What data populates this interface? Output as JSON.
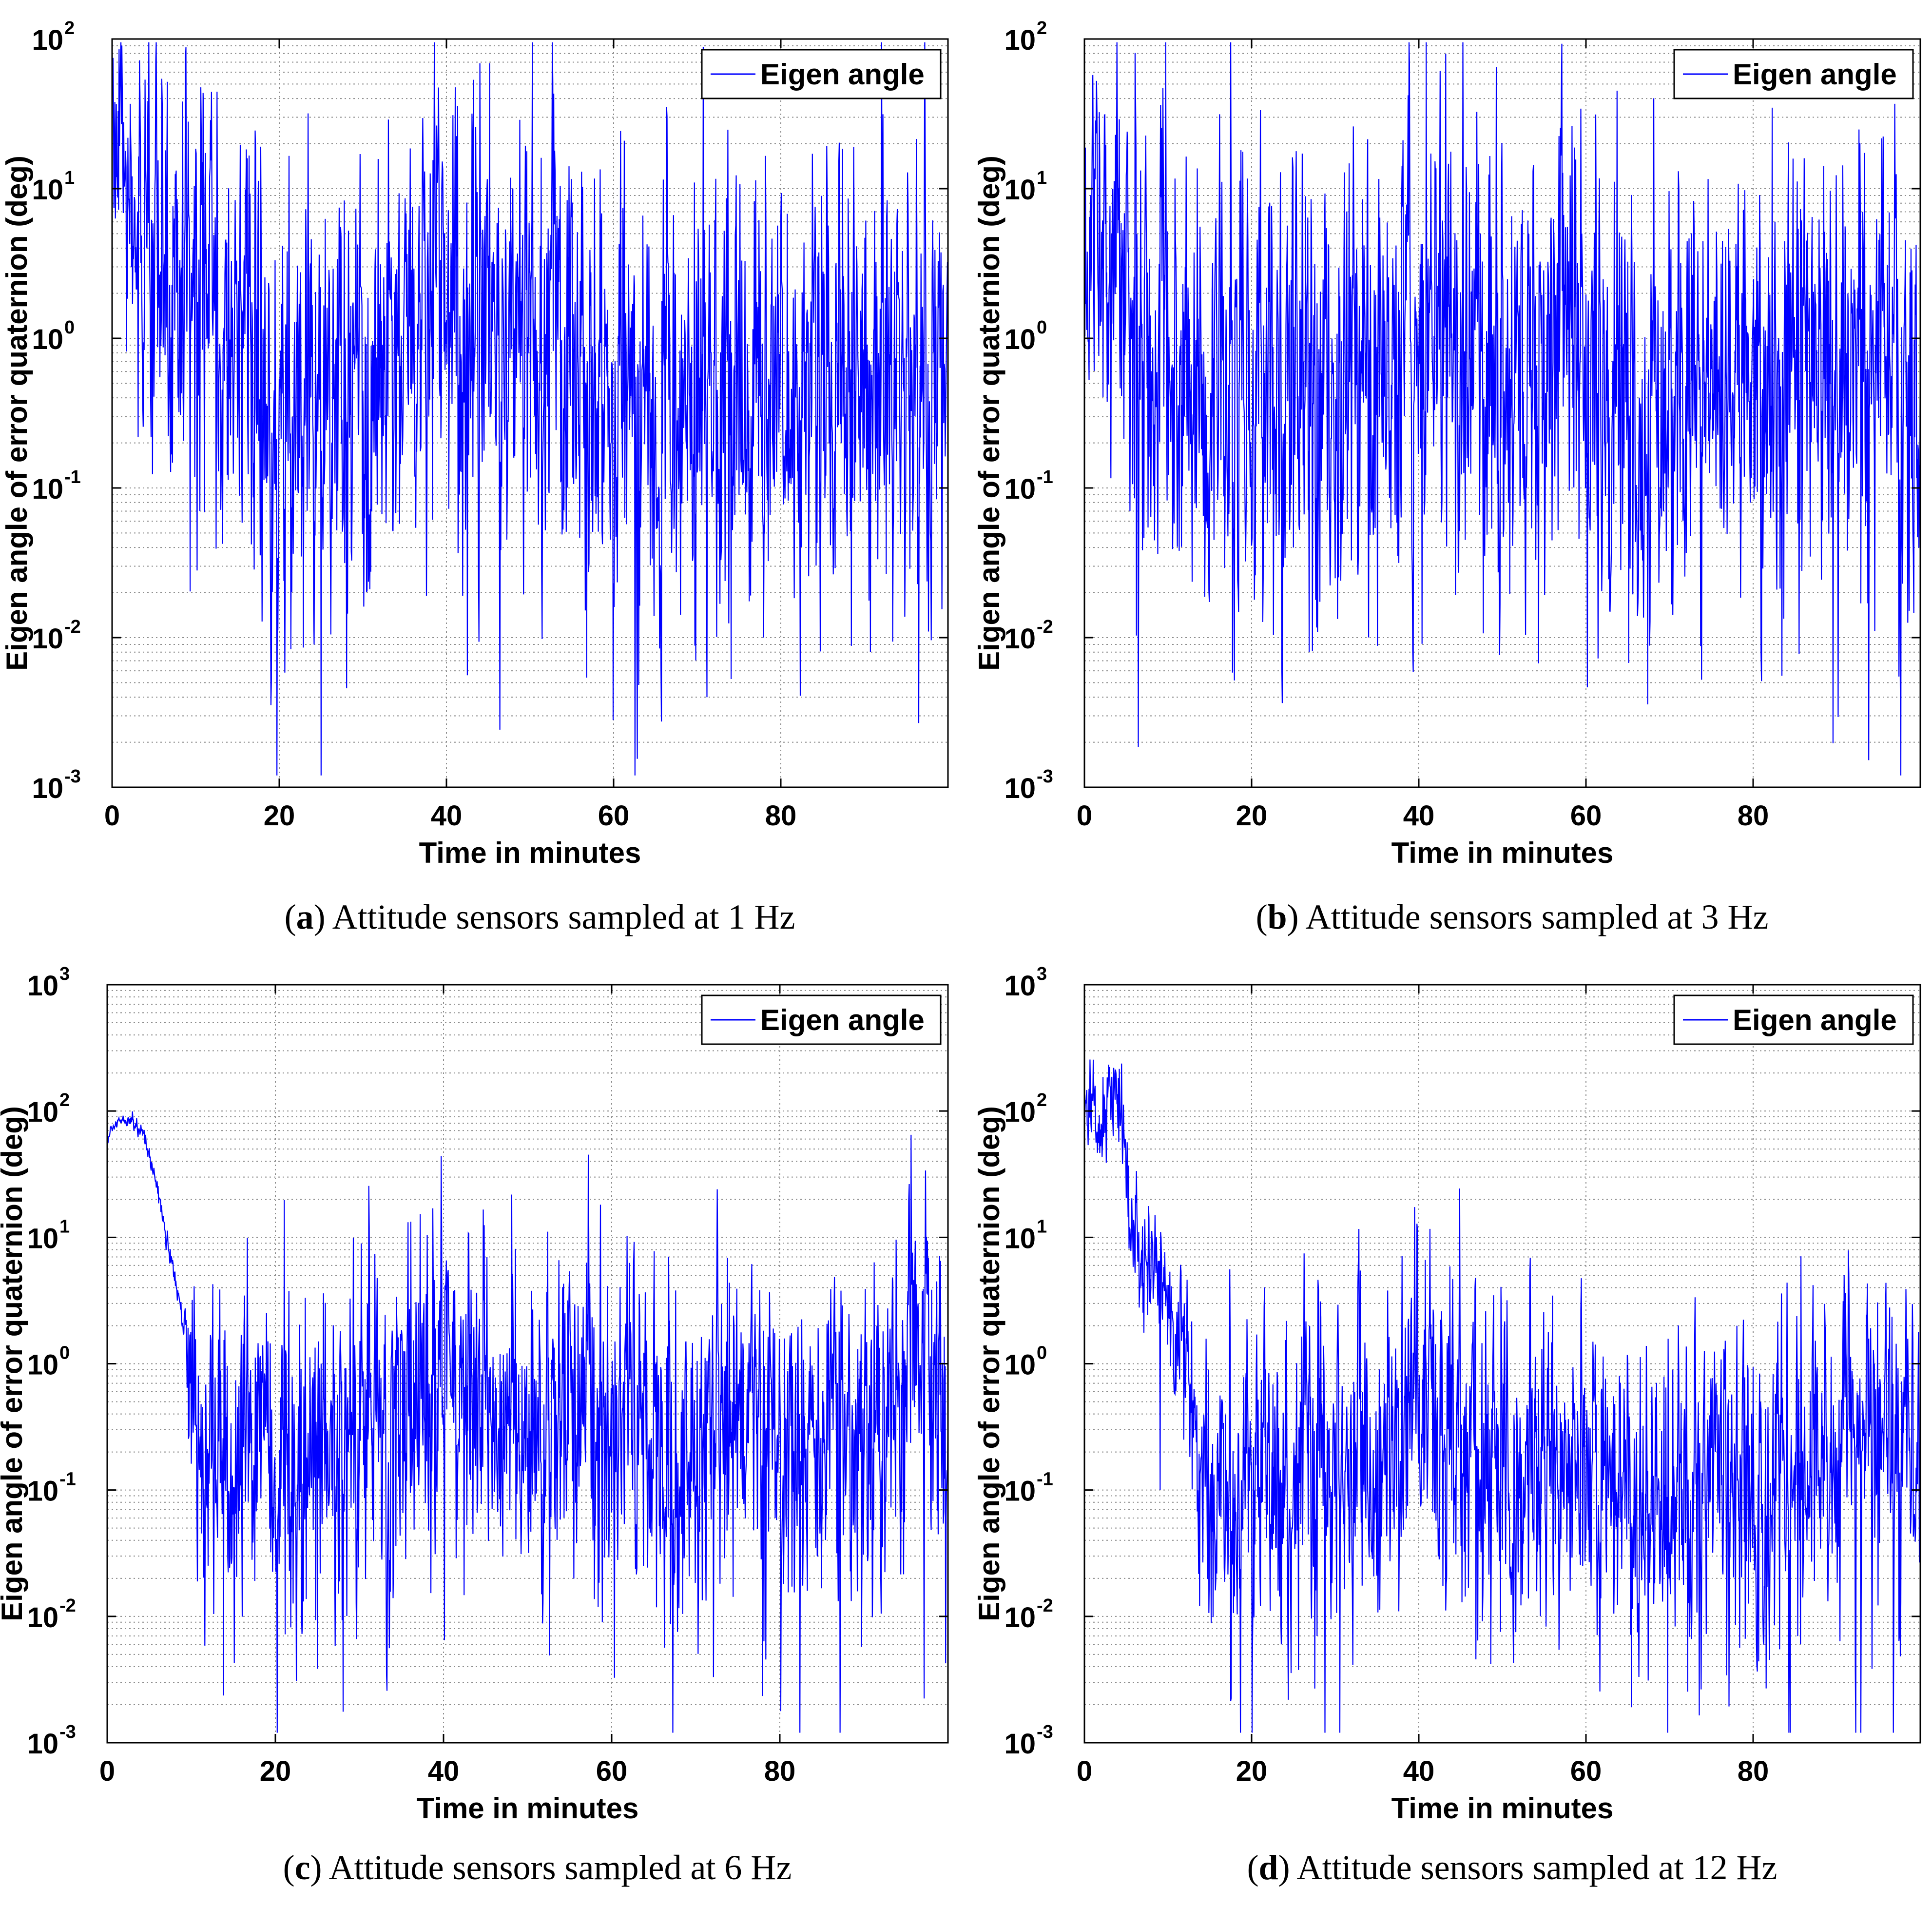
{
  "colors": {
    "series": "#0000ff",
    "grid": "#8c8c8c",
    "axis": "#000000"
  },
  "chart_data": [
    {
      "type": "line",
      "id": "a",
      "caption_letter": "a",
      "caption_text": "Attitude sensors sampled at 1 Hz",
      "xlabel": "Time in minutes",
      "ylabel": "Eigen angle of error quaternion (deg)",
      "xlim": [
        0,
        100
      ],
      "xticks": [
        0,
        20,
        40,
        60,
        80
      ],
      "yscale": "log",
      "ylim": [
        0.001,
        100
      ],
      "ytick_exponents": [
        -3,
        -2,
        -1,
        0,
        1,
        2
      ],
      "grid": true,
      "legend": "top-right",
      "series": [
        {
          "name": "Eigen angle",
          "profile": [
            [
              0,
              40
            ],
            [
              0.5,
              30
            ],
            [
              1,
              15
            ],
            [
              2,
              10
            ],
            [
              3,
              5
            ],
            [
              4,
              3
            ],
            [
              5,
              2
            ],
            [
              7,
              2
            ],
            [
              10,
              2.5
            ],
            [
              13,
              1.5
            ],
            [
              16,
              1.5
            ],
            [
              18,
              0.3
            ],
            [
              25,
              0.3
            ],
            [
              32,
              0.3
            ],
            [
              36,
              1.0
            ],
            [
              38,
              4.0
            ],
            [
              40,
              3.0
            ],
            [
              43,
              1.5
            ],
            [
              47,
              1.5
            ],
            [
              50,
              1.2
            ],
            [
              54,
              1.0
            ],
            [
              58,
              0.8
            ],
            [
              60,
              0.4
            ],
            [
              70,
              0.4
            ],
            [
              80,
              0.5
            ],
            [
              90,
              0.5
            ],
            [
              100,
              0.6
            ]
          ],
          "noise_sigma": [
            [
              0,
              0.3
            ],
            [
              5,
              0.6
            ],
            [
              17,
              0.7
            ],
            [
              100,
              0.7
            ]
          ]
        }
      ]
    },
    {
      "type": "line",
      "id": "b",
      "caption_letter": "b",
      "caption_text": "Attitude sensors sampled at 3 Hz",
      "xlabel": "Time in minutes",
      "ylabel": "Eigen angle of error quaternion (deg)",
      "xlim": [
        0,
        100
      ],
      "xticks": [
        0,
        20,
        40,
        60,
        80
      ],
      "yscale": "log",
      "ylim": [
        0.001,
        100
      ],
      "ytick_exponents": [
        -3,
        -2,
        -1,
        0,
        1,
        2
      ],
      "grid": true,
      "legend": "top-right",
      "series": [
        {
          "name": "Eigen angle",
          "profile": [
            [
              0,
              1
            ],
            [
              1,
              10
            ],
            [
              2,
              6
            ],
            [
              4,
              4
            ],
            [
              6,
              2
            ],
            [
              8,
              1.5
            ],
            [
              10,
              0.6
            ],
            [
              20,
              0.4
            ],
            [
              30,
              0.35
            ],
            [
              35,
              0.8
            ],
            [
              40,
              1.2
            ],
            [
              45,
              1.0
            ],
            [
              50,
              1.0
            ],
            [
              55,
              0.9
            ],
            [
              58,
              1.4
            ],
            [
              60,
              0.8
            ],
            [
              62,
              0.3
            ],
            [
              70,
              0.35
            ],
            [
              80,
              0.35
            ],
            [
              90,
              0.6
            ],
            [
              95,
              0.8
            ],
            [
              100,
              0.5
            ]
          ],
          "noise_sigma": [
            [
              0,
              0.5
            ],
            [
              8,
              0.7
            ],
            [
              100,
              0.7
            ]
          ]
        }
      ]
    },
    {
      "type": "line",
      "id": "c",
      "caption_letter": "c",
      "caption_text": "Attitude sensors sampled at 6 Hz",
      "xlabel": "Time in minutes",
      "ylabel": "Eigen angle of error quaternion (deg)",
      "xlim": [
        0,
        100
      ],
      "xticks": [
        0,
        20,
        40,
        60,
        80
      ],
      "yscale": "log",
      "ylim": [
        0.001,
        1000
      ],
      "ytick_exponents": [
        -3,
        -2,
        -1,
        0,
        1,
        2,
        3
      ],
      "grid": true,
      "legend": "top-right",
      "series": [
        {
          "name": "Eigen angle",
          "profile": [
            [
              0,
              60
            ],
            [
              1,
              80
            ],
            [
              2,
              90
            ],
            [
              3,
              85
            ],
            [
              4,
              70
            ],
            [
              5,
              45
            ],
            [
              6,
              25
            ],
            [
              7,
              10
            ],
            [
              8,
              5
            ],
            [
              9,
              2
            ],
            [
              10,
              1.0
            ],
            [
              11,
              0.25
            ],
            [
              20,
              0.25
            ],
            [
              30,
              0.3
            ],
            [
              38,
              0.6
            ],
            [
              44,
              0.8
            ],
            [
              48,
              0.4
            ],
            [
              55,
              0.35
            ],
            [
              60,
              0.2
            ],
            [
              70,
              0.25
            ],
            [
              80,
              0.3
            ],
            [
              90,
              0.35
            ],
            [
              96,
              0.8
            ],
            [
              100,
              0.3
            ]
          ],
          "noise_sigma": [
            [
              0,
              0.02
            ],
            [
              9,
              0.05
            ],
            [
              11,
              0.6
            ],
            [
              100,
              0.6
            ]
          ]
        }
      ]
    },
    {
      "type": "line",
      "id": "d",
      "caption_letter": "d",
      "caption_text": "Attitude sensors sampled at 12 Hz",
      "xlabel": "Time in minutes",
      "ylabel": "Eigen angle of error quaternion (deg)",
      "xlim": [
        0,
        100
      ],
      "xticks": [
        0,
        20,
        40,
        60,
        80
      ],
      "yscale": "log",
      "ylim": [
        0.001,
        1000
      ],
      "ytick_exponents": [
        -3,
        -2,
        -1,
        0,
        1,
        2,
        3
      ],
      "grid": true,
      "legend": "top-right",
      "series": [
        {
          "name": "Eigen angle",
          "profile": [
            [
              0,
              100
            ],
            [
              1,
              120
            ],
            [
              2,
              60
            ],
            [
              3,
              180
            ],
            [
              4,
              100
            ],
            [
              5,
              40
            ],
            [
              6,
              8
            ],
            [
              7,
              8
            ],
            [
              8,
              5
            ],
            [
              9,
              6
            ],
            [
              10,
              3
            ],
            [
              11,
              2
            ],
            [
              12,
              1.5
            ],
            [
              13,
              0.5
            ],
            [
              14,
              0.15
            ],
            [
              20,
              0.12
            ],
            [
              30,
              0.12
            ],
            [
              38,
              0.2
            ],
            [
              40,
              0.5
            ],
            [
              45,
              0.3
            ],
            [
              50,
              0.15
            ],
            [
              60,
              0.12
            ],
            [
              70,
              0.08
            ],
            [
              80,
              0.1
            ],
            [
              90,
              0.15
            ],
            [
              95,
              0.25
            ],
            [
              100,
              0.15
            ]
          ],
          "noise_sigma": [
            [
              0,
              0.15
            ],
            [
              12,
              0.3
            ],
            [
              14,
              0.6
            ],
            [
              100,
              0.6
            ]
          ]
        }
      ]
    }
  ]
}
